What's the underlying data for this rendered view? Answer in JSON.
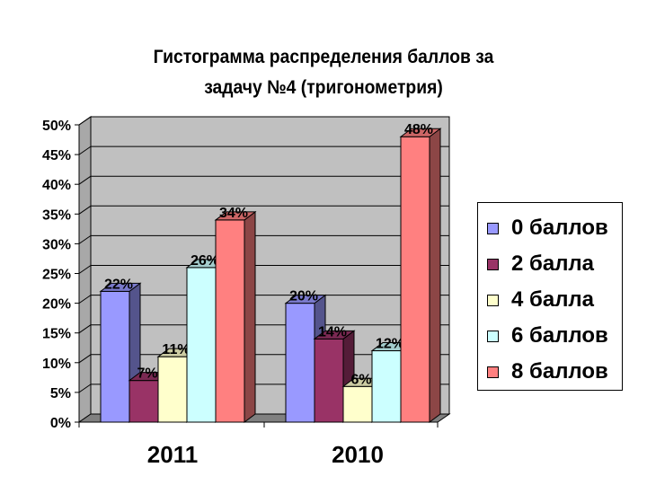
{
  "chart_data": {
    "type": "bar",
    "title": "Гистограмма распределения баллов за задачу №4 (тригонометрия)",
    "title_lines": [
      "Гистограмма распределения баллов за",
      "задачу №4 (тригонометрия)"
    ],
    "categories": [
      "2011",
      "2010"
    ],
    "series": [
      {
        "name": "0 баллов",
        "values": [
          22,
          20
        ],
        "labels": [
          "22%",
          "20%"
        ],
        "color": "#9999ff"
      },
      {
        "name": "2 балла",
        "values": [
          7,
          14
        ],
        "labels": [
          "7%",
          "14%"
        ],
        "color": "#993366"
      },
      {
        "name": "4 балла",
        "values": [
          11,
          6
        ],
        "labels": [
          "11%",
          "6%"
        ],
        "color": "#ffffcc"
      },
      {
        "name": "6 баллов",
        "values": [
          26,
          12
        ],
        "labels": [
          "26%",
          "12%"
        ],
        "color": "#ccffff"
      },
      {
        "name": "8 баллов",
        "values": [
          34,
          48
        ],
        "labels": [
          "34%",
          "48%"
        ],
        "color": "#ff8080"
      }
    ],
    "ylim": [
      0,
      50
    ],
    "y_ticks": [
      "0%",
      "5%",
      "10%",
      "15%",
      "20%",
      "25%",
      "30%",
      "35%",
      "40%",
      "45%",
      "50%"
    ],
    "xlabel": "",
    "ylabel": "",
    "grid": true,
    "legend_position": "right",
    "three_d": true,
    "plot_background": "#c0c0c0"
  }
}
